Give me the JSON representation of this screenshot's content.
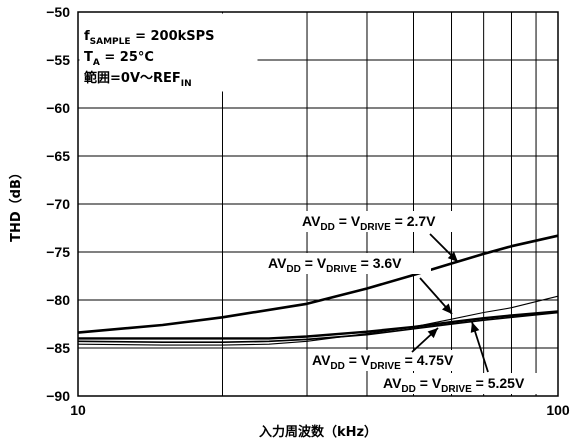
{
  "chart_data": {
    "type": "line",
    "xscale": "log",
    "xlim": [
      10,
      100
    ],
    "ylim": [
      -90,
      -50
    ],
    "xlabel": "入力周波数（kHz）",
    "ylabel": "THD（dB）",
    "xticks": [
      "10",
      "100"
    ],
    "yticks": [
      "−50",
      "−55",
      "−60",
      "−65",
      "−70",
      "−75",
      "−80",
      "−85",
      "−90"
    ],
    "ytick_values": [
      -50,
      -55,
      -60,
      -65,
      -70,
      -75,
      -80,
      -85,
      -90
    ],
    "grid": true,
    "conditions": {
      "fsample": {
        "main": "f",
        "sub": "SAMPLE",
        "rest": " = 200kSPS"
      },
      "ta": {
        "main": "T",
        "sub": "A",
        "rest": " = 25°C"
      },
      "range": "範囲=0V〜REF",
      "range_sub": "IN"
    },
    "series": [
      {
        "key": "2.7V",
        "label": {
          "a": "AV",
          "b": "DD",
          "c": " = V",
          "d": "DRIVE",
          "e": " = 2.7V"
        },
        "x": [
          10,
          15,
          20,
          30,
          40,
          50,
          60,
          70,
          80,
          100
        ],
        "y": [
          -83.4,
          -82.6,
          -81.8,
          -80.4,
          -78.8,
          -77.4,
          -76.2,
          -75.2,
          -74.4,
          -73.3
        ],
        "stroke": 2.6
      },
      {
        "key": "3.6V",
        "label": {
          "a": "AV",
          "b": "DD",
          "c": " = V",
          "d": "DRIVE",
          "e": " = 3.6V"
        },
        "x": [
          10,
          15,
          20,
          25,
          30,
          40,
          50,
          60,
          70,
          80,
          100
        ],
        "y": [
          -84.6,
          -84.7,
          -84.7,
          -84.6,
          -84.3,
          -83.5,
          -82.8,
          -82.0,
          -81.3,
          -80.8,
          -79.6
        ],
        "stroke": 1.1
      },
      {
        "key": "4.75V",
        "label": {
          "a": "AV",
          "b": "DD",
          "c": " = V",
          "d": "DRIVE",
          "e": " = 4.75V"
        },
        "x": [
          10,
          15,
          20,
          25,
          30,
          40,
          50,
          60,
          70,
          80,
          100
        ],
        "y": [
          -84.0,
          -84.0,
          -84.0,
          -84.0,
          -83.8,
          -83.3,
          -82.8,
          -82.3,
          -81.9,
          -81.6,
          -81.2
        ],
        "stroke": 2.4
      },
      {
        "key": "5.25V",
        "label": {
          "a": "AV",
          "b": "DD",
          "c": " = V",
          "d": "DRIVE",
          "e": " = 5.25V"
        },
        "x": [
          10,
          15,
          20,
          25,
          30,
          40,
          50,
          60,
          70,
          80,
          100
        ],
        "y": [
          -84.3,
          -84.4,
          -84.4,
          -84.3,
          -84.1,
          -83.6,
          -83.0,
          -82.5,
          -82.1,
          -81.8,
          -81.3
        ],
        "stroke": 1.7
      }
    ]
  }
}
